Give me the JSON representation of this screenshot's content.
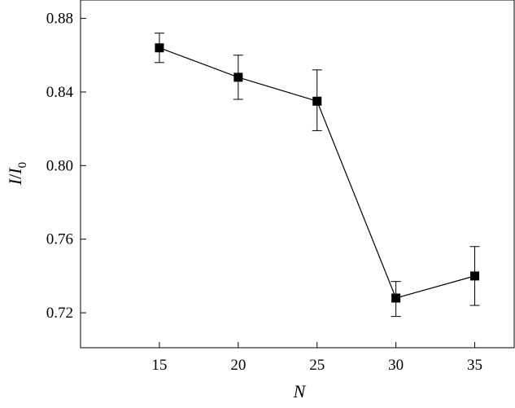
{
  "chart_data": {
    "type": "line",
    "title": "",
    "xlabel": "N",
    "ylabel_main": "I",
    "ylabel_sep": "/",
    "ylabel_base": "I",
    "ylabel_sub": "0",
    "x_ticks": [
      "15",
      "20",
      "25",
      "30",
      "35"
    ],
    "y_ticks": [
      "0.72",
      "0.76",
      "0.80",
      "0.84",
      "0.88"
    ],
    "xlim": [
      10,
      37.5
    ],
    "ylim": [
      0.701,
      0.89
    ],
    "grid": false,
    "series": [
      {
        "x": [
          15,
          20,
          25,
          30,
          35
        ],
        "y": [
          0.864,
          0.848,
          0.835,
          0.728,
          0.74
        ],
        "err_low": [
          0.856,
          0.836,
          0.819,
          0.718,
          0.724
        ],
        "err_high": [
          0.872,
          0.86,
          0.852,
          0.737,
          0.756
        ],
        "marker": "square",
        "color": "#000000"
      }
    ]
  }
}
